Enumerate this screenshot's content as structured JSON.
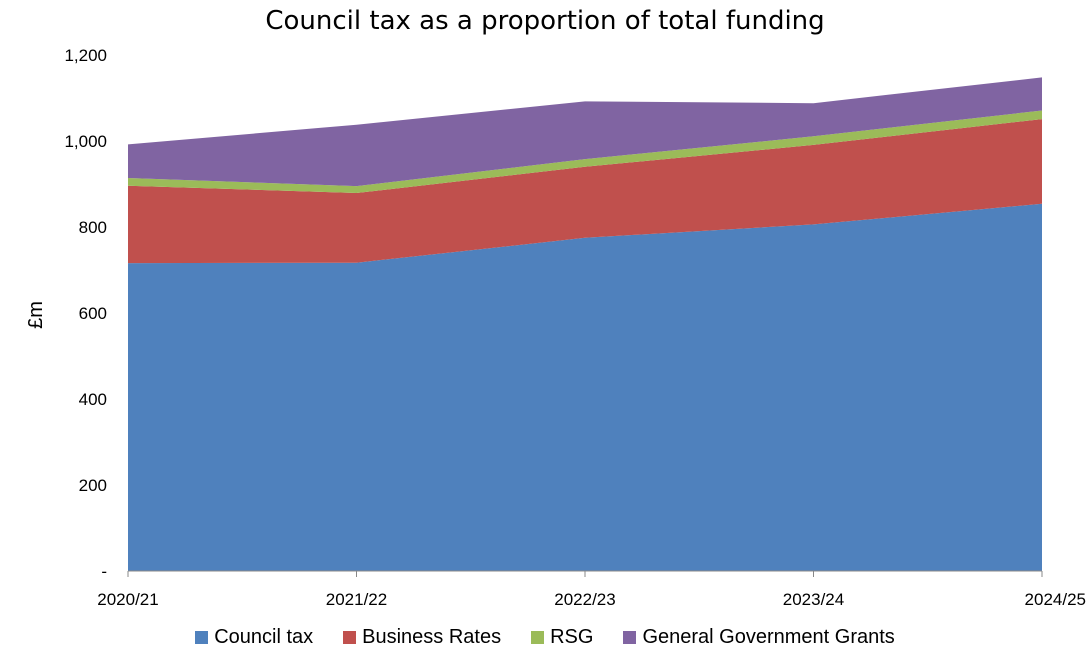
{
  "chart_data": {
    "type": "area",
    "stacked": true,
    "title": "Council tax as a proportion of total funding",
    "xlabel": "",
    "ylabel": "£m",
    "categories": [
      "2020/21",
      "2021/22",
      "2022/23",
      "2023/24",
      "2024/25"
    ],
    "ylim": [
      0,
      1200
    ],
    "yticks": [
      {
        "value": 0,
        "label": "-"
      },
      {
        "value": 200,
        "label": "200"
      },
      {
        "value": 400,
        "label": "400"
      },
      {
        "value": 600,
        "label": "600"
      },
      {
        "value": 800,
        "label": "800"
      },
      {
        "value": 1000,
        "label": "1,000"
      },
      {
        "value": 1200,
        "label": "1,200"
      }
    ],
    "grid": false,
    "legend_position": "bottom",
    "series": [
      {
        "name": "Council tax",
        "color": "#4f81bd",
        "values": [
          716,
          717,
          775,
          806,
          854
        ]
      },
      {
        "name": "Business Rates",
        "color": "#c0504d",
        "values": [
          180,
          162,
          165,
          185,
          197
        ]
      },
      {
        "name": "RSG",
        "color": "#9bbb59",
        "values": [
          18,
          16,
          18,
          20,
          20
        ]
      },
      {
        "name": "General Government Grants",
        "color": "#8064a2",
        "values": [
          78,
          143,
          134,
          77,
          77
        ]
      }
    ]
  }
}
